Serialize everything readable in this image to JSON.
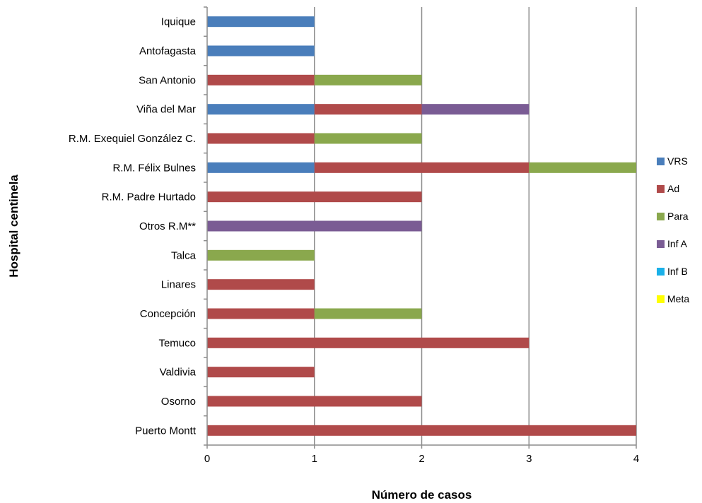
{
  "chart_data": {
    "type": "bar",
    "orientation": "horizontal",
    "stacked": true,
    "categories": [
      "Iquique",
      "Antofagasta",
      "San Antonio",
      "Viña del Mar",
      "R.M. Exequiel González C.",
      "R.M. Félix Bulnes",
      "R.M. Padre Hurtado",
      "Otros R.M**",
      "Talca",
      "Linares",
      "Concepción",
      "Temuco",
      "Valdivia",
      "Osorno",
      "Puerto Montt"
    ],
    "series": [
      {
        "name": "VRS",
        "color": "#4a7ebb",
        "values": [
          1,
          1,
          0,
          1,
          0,
          1,
          0,
          0,
          0,
          0,
          0,
          0,
          0,
          0,
          0
        ]
      },
      {
        "name": "Ad",
        "color": "#b04a4a",
        "values": [
          0,
          0,
          1,
          1,
          1,
          2,
          2,
          0,
          0,
          1,
          1,
          3,
          1,
          2,
          4
        ]
      },
      {
        "name": "Para",
        "color": "#8aa84d",
        "values": [
          0,
          0,
          1,
          0,
          1,
          1,
          0,
          0,
          1,
          0,
          1,
          0,
          0,
          0,
          0
        ]
      },
      {
        "name": "Inf A",
        "color": "#7a5c94",
        "values": [
          0,
          0,
          0,
          1,
          0,
          0,
          0,
          2,
          0,
          0,
          0,
          0,
          0,
          0,
          0
        ]
      },
      {
        "name": "Inf B",
        "color": "#1ab0e8",
        "values": [
          0,
          0,
          0,
          0,
          0,
          0,
          0,
          0,
          0,
          0,
          0,
          0,
          0,
          0,
          0
        ]
      },
      {
        "name": "Meta",
        "color": "#ffff00",
        "values": [
          0,
          0,
          0,
          0,
          0,
          0,
          0,
          0,
          0,
          0,
          0,
          0,
          0,
          0,
          0
        ]
      }
    ],
    "xlabel": "Número de casos",
    "ylabel": "Hospital centinela",
    "xlim": [
      0,
      4
    ],
    "xticks": [
      "0",
      "1",
      "2",
      "3",
      "4"
    ],
    "grid": "vertical major gridlines",
    "legend_position": "right"
  }
}
